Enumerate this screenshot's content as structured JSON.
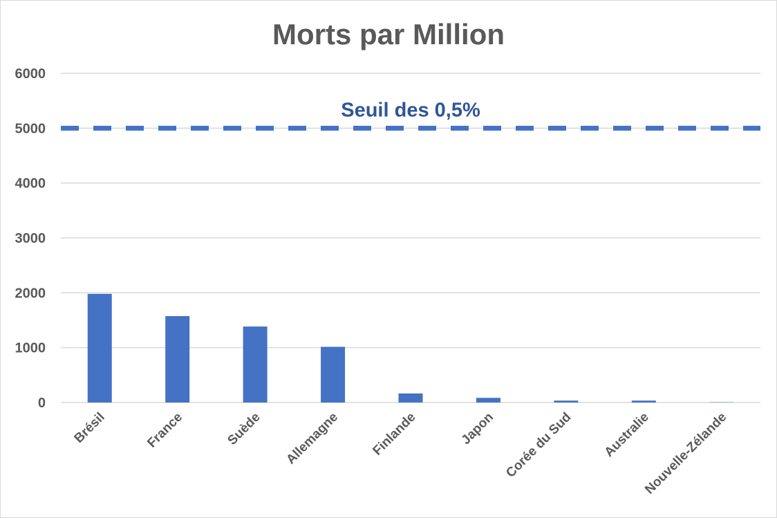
{
  "chart_data": {
    "type": "bar",
    "title": "Morts par Million",
    "categories": [
      "Brésil",
      "France",
      "Suède",
      "Allemagne",
      "Finlande",
      "Japon",
      "Corée du Sud",
      "Australie",
      "Nouvelle-Zélande"
    ],
    "values": [
      1980,
      1575,
      1385,
      1015,
      165,
      85,
      35,
      35,
      5
    ],
    "ylim": [
      0,
      6000
    ],
    "yticks": [
      "0",
      "1000",
      "2000",
      "3000",
      "4000",
      "5000",
      "6000"
    ],
    "grid": true,
    "bar_color": "#4472c4",
    "threshold": {
      "label": "Seuil des 0,5%",
      "value": 5000,
      "color": "#4472c4",
      "label_color": "#2f5597",
      "style": "dashed"
    }
  }
}
